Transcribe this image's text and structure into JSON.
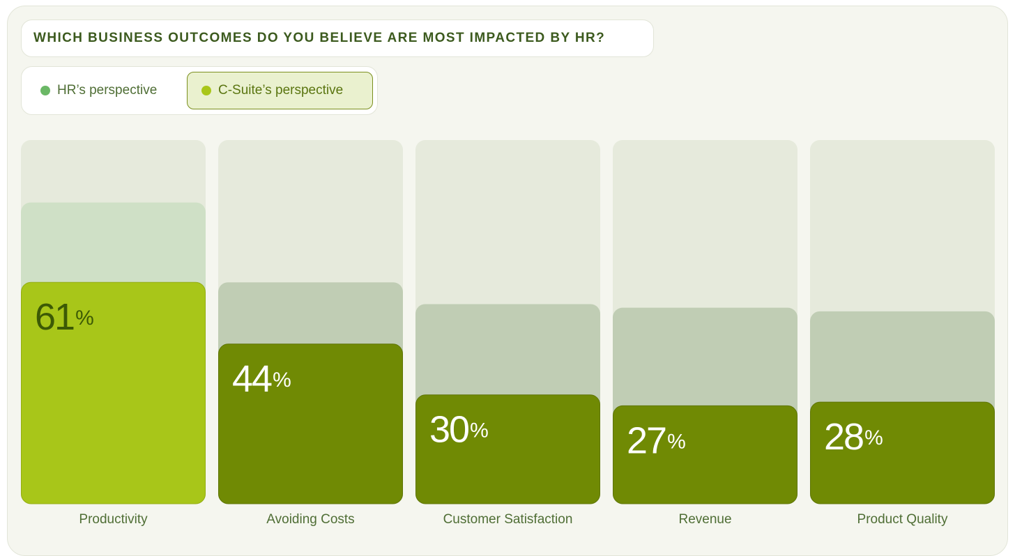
{
  "title": "WHICH BUSINESS OUTCOMES DO YOU BELIEVE ARE MOST IMPACTED BY HR?",
  "legend": {
    "hr": {
      "label": "HR’s perspective",
      "color": "#6bb866",
      "selected": false
    },
    "csuite": {
      "label": "C-Suite’s perspective",
      "color": "#a9c61a",
      "selected": true
    }
  },
  "colors": {
    "track": "#e6eadc",
    "hr_bar_light": "#cfe0c6",
    "hr_bar_dim": "#c0cdb4",
    "csuite_highlight": "#a8c619",
    "csuite_bar": "#708a04",
    "label_on_dark": "#ffffff",
    "label_on_light": "#3c5a05",
    "category_text": "#4f6e35"
  },
  "chart_data": {
    "type": "bar",
    "categories": [
      "Productivity",
      "Avoiding Costs",
      "Customer Satisfaction",
      "Revenue",
      "Product Quality"
    ],
    "series": [
      {
        "name": "HR’s perspective",
        "values": [
          83,
          61,
          55,
          54,
          53
        ]
      },
      {
        "name": "C-Suite’s perspective",
        "values": [
          61,
          44,
          30,
          27,
          28
        ]
      }
    ],
    "value_labels": [
      "61",
      "44",
      "30",
      "27",
      "28"
    ],
    "unit": "%",
    "ylim": [
      0,
      100
    ],
    "highlight_index": 0
  }
}
